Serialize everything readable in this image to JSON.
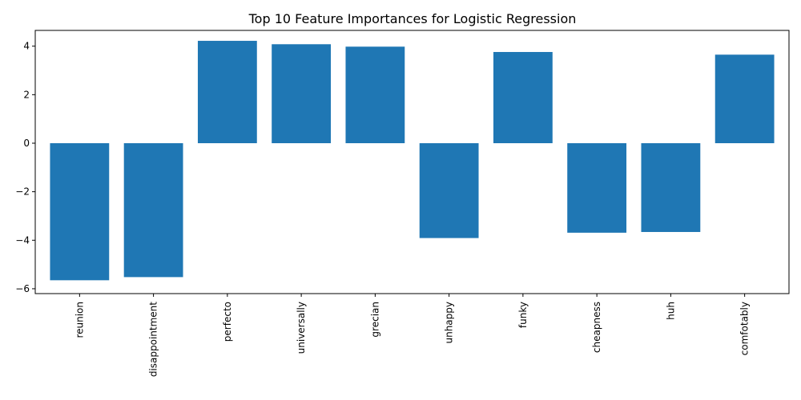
{
  "chart_data": {
    "type": "bar",
    "title": "Top 10 Feature Importances for Logistic Regression",
    "xlabel": "",
    "ylabel": "",
    "categories": [
      "reunion",
      "disappointment",
      "perfecto",
      "universally",
      "grecian",
      "unhappy",
      "funky",
      "cheapness",
      "huh",
      "comfotably"
    ],
    "values": [
      -5.65,
      -5.52,
      4.22,
      4.08,
      3.98,
      -3.91,
      3.76,
      -3.69,
      -3.66,
      3.65
    ],
    "ylim": [
      -6.2,
      4.65
    ],
    "yticks": [
      -6,
      -4,
      -2,
      0,
      2,
      4
    ],
    "bar_color": "#1f77b4",
    "grid": false,
    "legend": "none"
  }
}
